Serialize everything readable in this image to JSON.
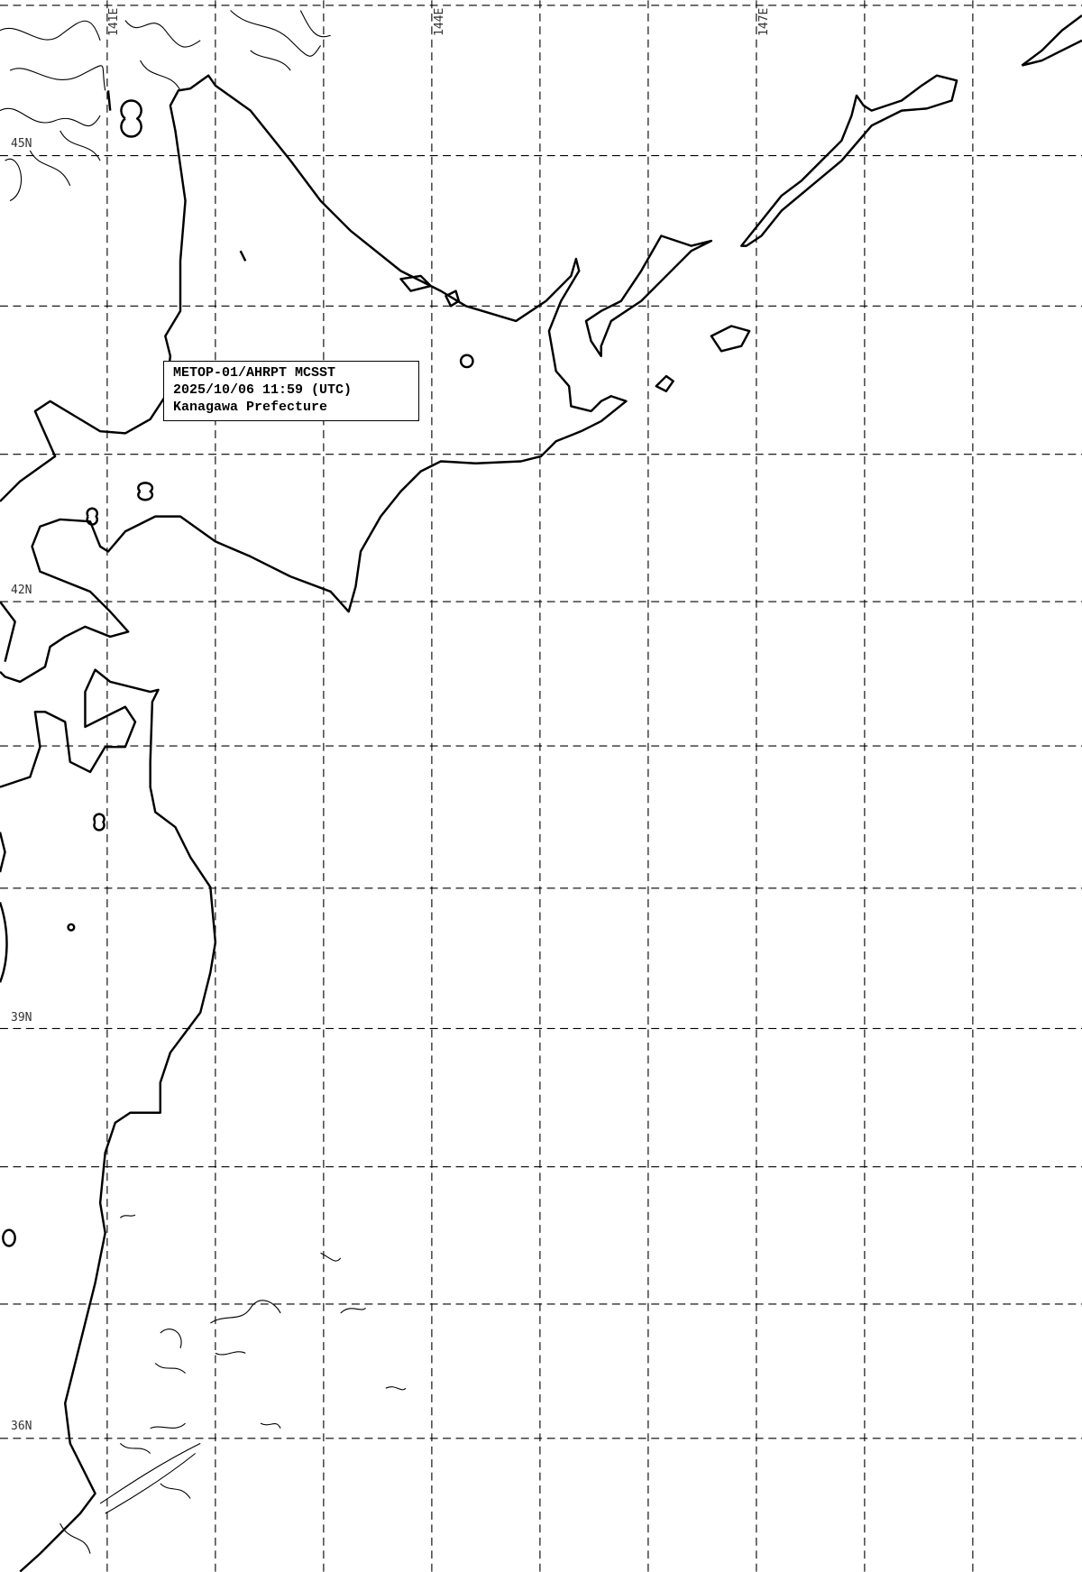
{
  "info_box": {
    "line1": "METOP-01/AHRPT MCSST",
    "line2": "2025/10/06 11:59 (UTC)",
    "line3": "Kanagawa Prefecture"
  },
  "longitude_labels": [
    "141E",
    "144E",
    "147E"
  ],
  "latitude_labels": [
    "45N",
    "42N",
    "39N",
    "36N"
  ],
  "colors": {
    "coastline": "#000000",
    "grid": "#000000",
    "contours": "#000000",
    "background": "#ffffff"
  }
}
